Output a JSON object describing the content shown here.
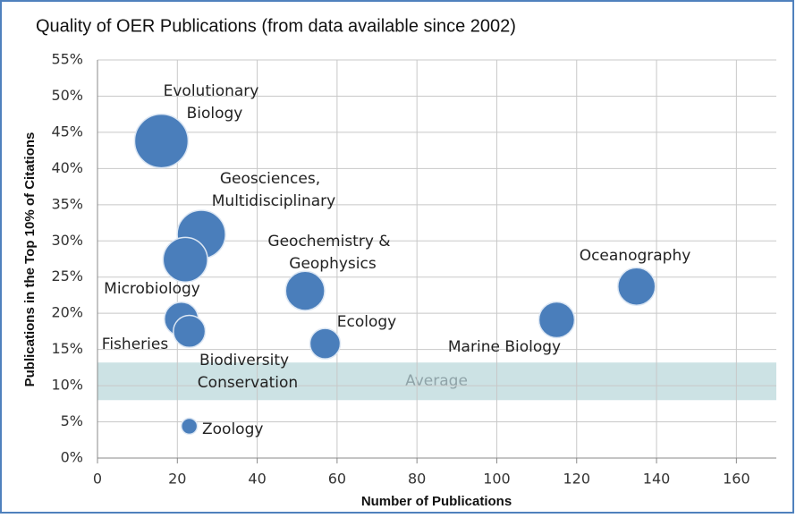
{
  "chart_data": {
    "type": "bubble",
    "title": "Quality of OER Publications (from data available since 2002)",
    "x_label": "Number of Publications",
    "y_label": "Publications in the Top 10% of Citations",
    "color": "#4a7ebb",
    "grid": true,
    "xlim": [
      0,
      170
    ],
    "xticks": [
      0,
      20,
      40,
      60,
      80,
      100,
      120,
      140,
      160
    ],
    "ylim": [
      0,
      55
    ],
    "yticks": [
      {
        "value": 0,
        "label": "0%"
      },
      {
        "value": 5,
        "label": "5%"
      },
      {
        "value": 10,
        "label": "10%"
      },
      {
        "value": 15,
        "label": "15%"
      },
      {
        "value": 20,
        "label": "20%"
      },
      {
        "value": 25,
        "label": "25%"
      },
      {
        "value": 30,
        "label": "30%"
      },
      {
        "value": 35,
        "label": "35%"
      },
      {
        "value": 40,
        "label": "40%"
      },
      {
        "value": 45,
        "label": "45%"
      },
      {
        "value": 50,
        "label": "50%"
      },
      {
        "value": 55,
        "label": "55%"
      }
    ],
    "average_band": {
      "label": "Average",
      "range": [
        8,
        13.2
      ]
    },
    "labels": [
      [
        "Evolutionary",
        "Biology"
      ],
      [
        "Geosciences,",
        "Multidisciplinary"
      ],
      [
        "Microbiology"
      ],
      [
        "Fisheries"
      ],
      [
        "Biodiversity",
        "Conservation"
      ],
      [
        "Geochemistry &",
        "Geophysics"
      ],
      [
        "Ecology"
      ],
      [
        "Marine Biology"
      ],
      [
        "Oceanography"
      ],
      [
        "Zoology"
      ]
    ],
    "x": [
      16,
      26,
      22,
      21,
      23,
      52,
      57,
      115,
      135,
      23
    ],
    "y": [
      43.8,
      30.9,
      27.4,
      19.2,
      17.5,
      23.1,
      15.8,
      19.1,
      23.7,
      4.4
    ],
    "sizes": [
      90,
      73,
      62,
      36,
      32,
      48,
      29,
      40,
      44,
      8
    ]
  }
}
